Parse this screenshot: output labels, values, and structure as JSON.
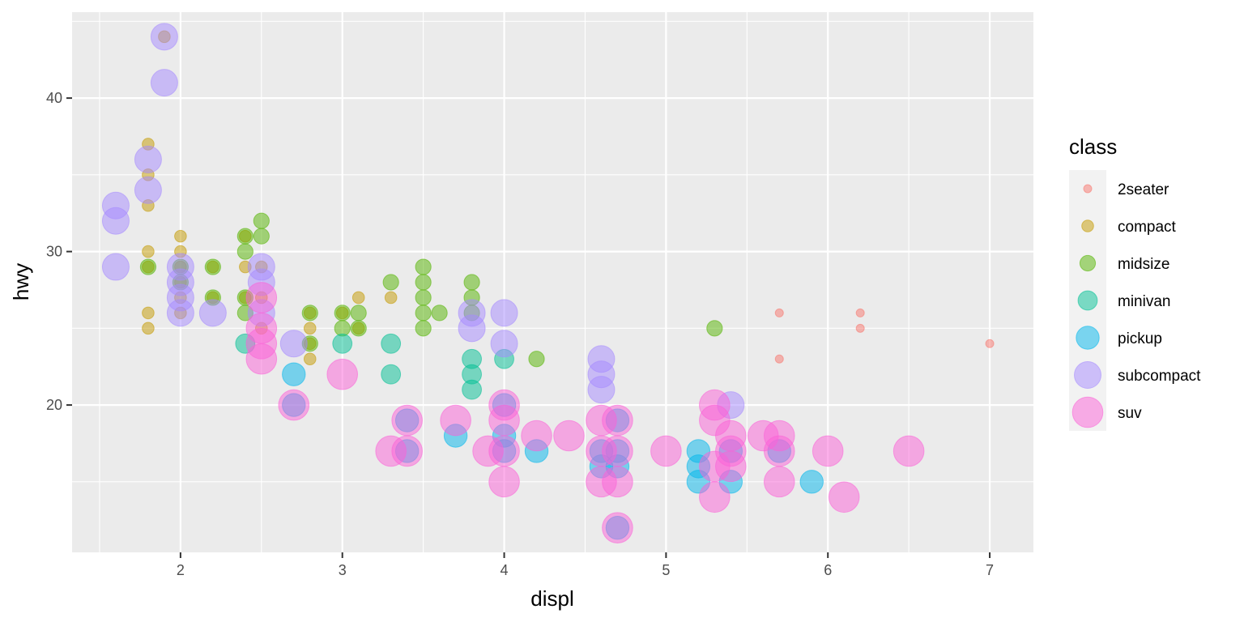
{
  "chart_data": {
    "type": "scatter",
    "title": "",
    "xlabel": "displ",
    "ylabel": "hwy",
    "xlim": [
      1.33,
      7.27
    ],
    "ylim": [
      10.4,
      45.6
    ],
    "x_ticks": [
      2,
      3,
      4,
      5,
      6,
      7
    ],
    "y_ticks": [
      20,
      30,
      40
    ],
    "grid": true,
    "point_alpha": 0.5,
    "legend": {
      "title": "class",
      "placement": "right",
      "note": "point size mapped to class"
    },
    "series": [
      {
        "name": "2seater",
        "color": "#F8766D",
        "size_rank": 1,
        "points": [
          [
            5.7,
            26
          ],
          [
            5.7,
            23
          ],
          [
            6.2,
            26
          ],
          [
            6.2,
            25
          ],
          [
            7.0,
            24
          ]
        ]
      },
      {
        "name": "compact",
        "color": "#C49A00",
        "size_rank": 2,
        "points": [
          [
            1.8,
            37
          ],
          [
            1.8,
            35
          ],
          [
            1.8,
            33
          ],
          [
            1.8,
            30
          ],
          [
            1.8,
            29
          ],
          [
            1.8,
            26
          ],
          [
            1.8,
            25
          ],
          [
            1.9,
            44
          ],
          [
            2.0,
            31
          ],
          [
            2.0,
            30
          ],
          [
            2.0,
            29
          ],
          [
            2.0,
            28
          ],
          [
            2.0,
            27
          ],
          [
            2.0,
            26
          ],
          [
            2.2,
            29
          ],
          [
            2.2,
            27
          ],
          [
            2.4,
            31
          ],
          [
            2.4,
            29
          ],
          [
            2.4,
            27
          ],
          [
            2.5,
            29
          ],
          [
            2.5,
            27
          ],
          [
            2.5,
            25
          ],
          [
            2.8,
            26
          ],
          [
            2.8,
            25
          ],
          [
            2.8,
            24
          ],
          [
            2.8,
            23
          ],
          [
            3.0,
            26
          ],
          [
            3.1,
            27
          ],
          [
            3.1,
            25
          ],
          [
            3.3,
            27
          ]
        ]
      },
      {
        "name": "midsize",
        "color": "#53B400",
        "size_rank": 3,
        "points": [
          [
            1.8,
            29
          ],
          [
            2.0,
            29
          ],
          [
            2.0,
            28
          ],
          [
            2.2,
            29
          ],
          [
            2.2,
            27
          ],
          [
            2.4,
            31
          ],
          [
            2.4,
            30
          ],
          [
            2.4,
            27
          ],
          [
            2.4,
            26
          ],
          [
            2.5,
            32
          ],
          [
            2.5,
            31
          ],
          [
            2.8,
            26
          ],
          [
            2.8,
            24
          ],
          [
            3.0,
            26
          ],
          [
            3.0,
            25
          ],
          [
            3.1,
            26
          ],
          [
            3.1,
            25
          ],
          [
            3.3,
            28
          ],
          [
            3.5,
            29
          ],
          [
            3.5,
            28
          ],
          [
            3.5,
            27
          ],
          [
            3.5,
            26
          ],
          [
            3.5,
            25
          ],
          [
            3.6,
            26
          ],
          [
            3.8,
            28
          ],
          [
            3.8,
            27
          ],
          [
            3.8,
            26
          ],
          [
            4.2,
            23
          ],
          [
            5.3,
            25
          ]
        ]
      },
      {
        "name": "minivan",
        "color": "#00C094",
        "size_rank": 4,
        "points": [
          [
            2.4,
            24
          ],
          [
            3.0,
            24
          ],
          [
            3.3,
            24
          ],
          [
            3.3,
            22
          ],
          [
            3.8,
            23
          ],
          [
            3.8,
            22
          ],
          [
            3.8,
            21
          ],
          [
            4.0,
            23
          ]
        ]
      },
      {
        "name": "pickup",
        "color": "#00B6EB",
        "size_rank": 5,
        "points": [
          [
            2.7,
            22
          ],
          [
            2.7,
            20
          ],
          [
            3.4,
            19
          ],
          [
            3.4,
            17
          ],
          [
            3.7,
            18
          ],
          [
            4.0,
            20
          ],
          [
            4.0,
            18
          ],
          [
            4.0,
            17
          ],
          [
            4.2,
            17
          ],
          [
            4.6,
            17
          ],
          [
            4.6,
            16
          ],
          [
            4.7,
            19
          ],
          [
            4.7,
            17
          ],
          [
            4.7,
            16
          ],
          [
            4.7,
            12
          ],
          [
            5.2,
            17
          ],
          [
            5.2,
            16
          ],
          [
            5.2,
            15
          ],
          [
            5.4,
            17
          ],
          [
            5.4,
            15
          ],
          [
            5.7,
            17
          ],
          [
            5.9,
            15
          ]
        ]
      },
      {
        "name": "subcompact",
        "color": "#A58AFF",
        "size_rank": 6,
        "points": [
          [
            1.6,
            33
          ],
          [
            1.6,
            32
          ],
          [
            1.6,
            29
          ],
          [
            1.8,
            36
          ],
          [
            1.8,
            34
          ],
          [
            1.9,
            44
          ],
          [
            1.9,
            41
          ],
          [
            2.0,
            29
          ],
          [
            2.0,
            28
          ],
          [
            2.0,
            27
          ],
          [
            2.0,
            26
          ],
          [
            2.2,
            26
          ],
          [
            2.5,
            29
          ],
          [
            2.5,
            28
          ],
          [
            2.5,
            26
          ],
          [
            2.7,
            24
          ],
          [
            3.8,
            26
          ],
          [
            3.8,
            25
          ],
          [
            4.0,
            26
          ],
          [
            4.0,
            24
          ],
          [
            4.6,
            23
          ],
          [
            4.6,
            22
          ],
          [
            4.6,
            21
          ],
          [
            5.4,
            20
          ]
        ]
      },
      {
        "name": "suv",
        "color": "#FB61D7",
        "size_rank": 7,
        "points": [
          [
            2.5,
            27
          ],
          [
            2.5,
            25
          ],
          [
            2.5,
            24
          ],
          [
            2.5,
            23
          ],
          [
            2.7,
            20
          ],
          [
            3.0,
            22
          ],
          [
            3.3,
            17
          ],
          [
            3.4,
            19
          ],
          [
            3.4,
            17
          ],
          [
            3.7,
            19
          ],
          [
            3.9,
            17
          ],
          [
            4.0,
            20
          ],
          [
            4.0,
            19
          ],
          [
            4.0,
            17
          ],
          [
            4.0,
            15
          ],
          [
            4.2,
            18
          ],
          [
            4.4,
            18
          ],
          [
            4.6,
            19
          ],
          [
            4.6,
            17
          ],
          [
            4.6,
            15
          ],
          [
            4.7,
            19
          ],
          [
            4.7,
            17
          ],
          [
            4.7,
            15
          ],
          [
            4.7,
            12
          ],
          [
            5.0,
            17
          ],
          [
            5.3,
            20
          ],
          [
            5.3,
            19
          ],
          [
            5.3,
            16
          ],
          [
            5.3,
            14
          ],
          [
            5.4,
            18
          ],
          [
            5.4,
            17
          ],
          [
            5.4,
            16
          ],
          [
            5.6,
            18
          ],
          [
            5.7,
            18
          ],
          [
            5.7,
            17
          ],
          [
            5.7,
            15
          ],
          [
            6.0,
            17
          ],
          [
            6.1,
            14
          ],
          [
            6.5,
            17
          ]
        ]
      }
    ]
  }
}
